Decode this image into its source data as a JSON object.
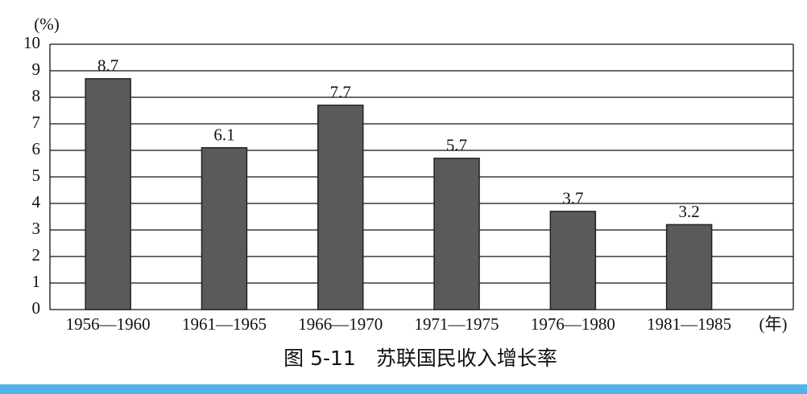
{
  "chart_data": {
    "type": "bar",
    "title": "图 5-11　苏联国民收入增长率",
    "y_label": "(%)",
    "x_label": "(年)",
    "categories": [
      "1956—1960",
      "1961—1965",
      "1966—1970",
      "1971—1975",
      "1976—1980",
      "1981—1985"
    ],
    "values": [
      8.7,
      6.1,
      7.7,
      5.7,
      3.7,
      3.2
    ],
    "color": "#5a5a5a",
    "ylim": [
      0,
      10
    ],
    "yticks": [
      0,
      1,
      2,
      3,
      4,
      5,
      6,
      7,
      8,
      9,
      10
    ],
    "grid": true
  }
}
